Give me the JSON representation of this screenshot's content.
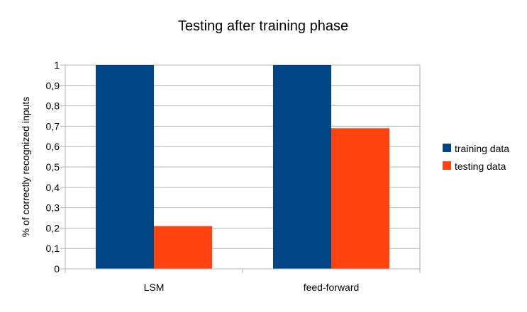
{
  "chart_data": {
    "type": "bar",
    "title": "Testing after training phase",
    "xlabel": "",
    "ylabel": "% of correctly recognized inputs",
    "categories": [
      "LSM",
      "feed-forward"
    ],
    "series": [
      {
        "name": "training data",
        "values": [
          1.0,
          1.0
        ],
        "color": "#004586"
      },
      {
        "name": "testing data",
        "values": [
          0.21,
          0.69
        ],
        "color": "#ff420e"
      }
    ],
    "ylim": [
      0,
      1
    ],
    "yticks": [
      "0",
      "0,1",
      "0,2",
      "0,3",
      "0,4",
      "0,5",
      "0,6",
      "0,7",
      "0,8",
      "0,9",
      "1"
    ],
    "grid": true,
    "grid_color": "#b3b3b3",
    "legend": "right"
  }
}
